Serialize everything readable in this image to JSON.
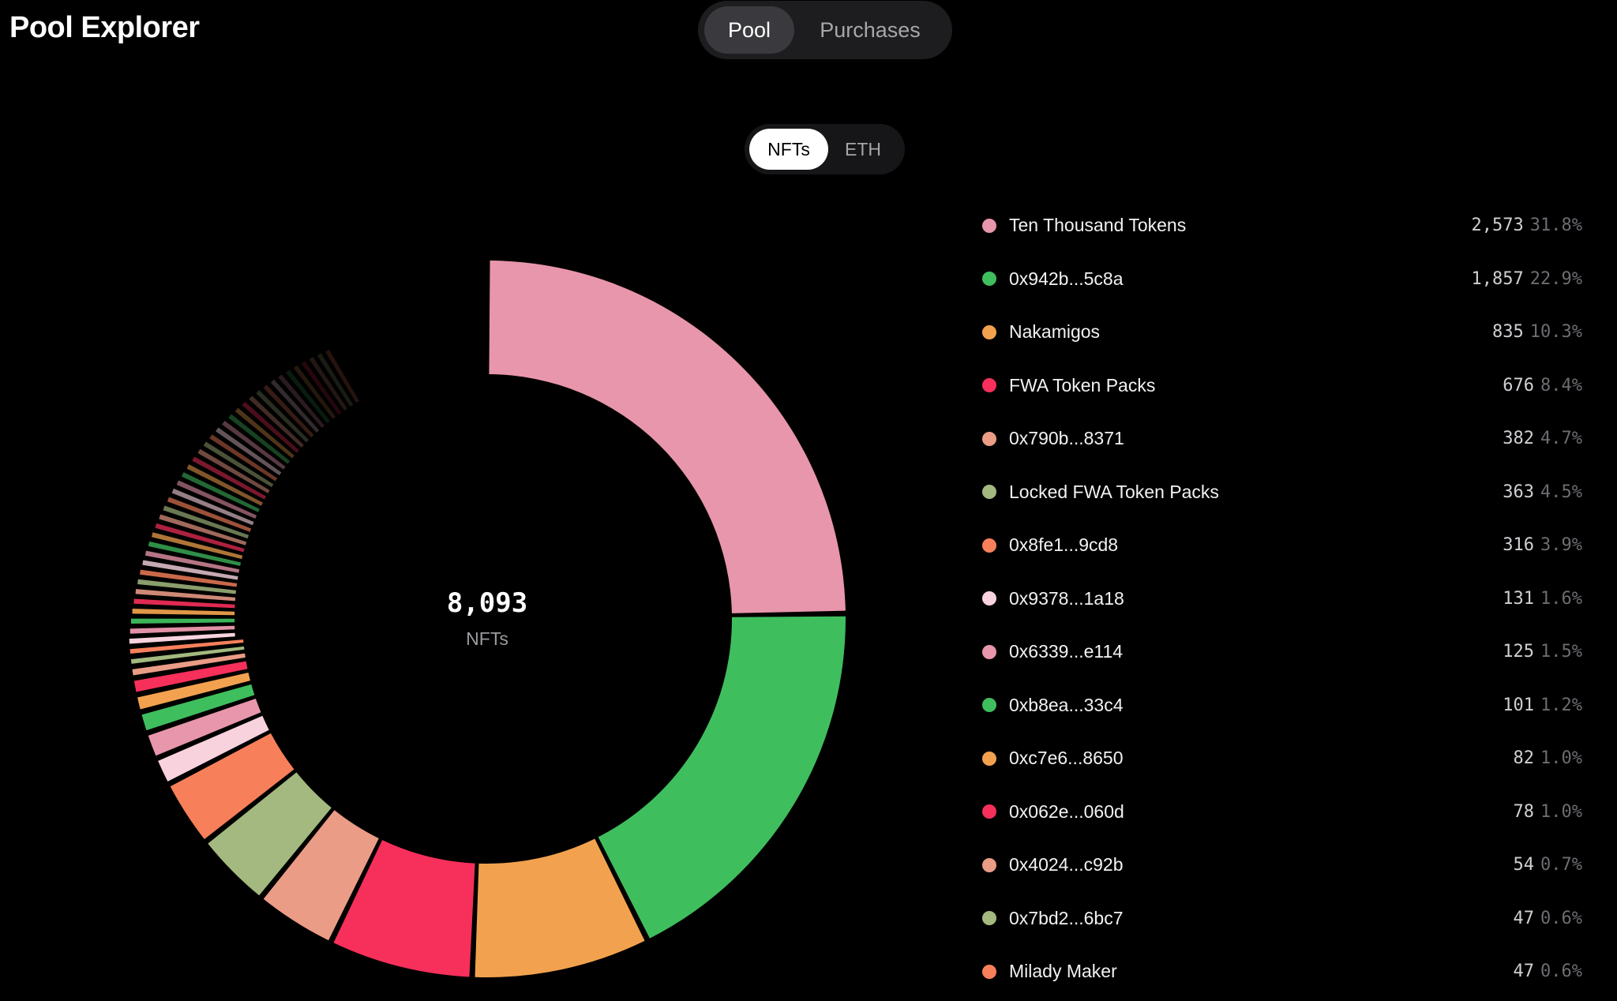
{
  "header": {
    "title": "Pool Explorer"
  },
  "tabs": [
    {
      "label": "Pool",
      "active": true
    },
    {
      "label": "Purchases",
      "active": false
    }
  ],
  "unit_toggle": {
    "options": [
      {
        "label": "NFTs",
        "selected": true
      },
      {
        "label": "ETH",
        "selected": false
      }
    ]
  },
  "summary": {
    "total": "8,093",
    "unit": "NFTs"
  },
  "legend": [
    {
      "name": "Ten Thousand Tokens",
      "count": "2,573",
      "pct": "31.8%",
      "color": "#e896ab"
    },
    {
      "name": "0x942b...5c8a",
      "count": "1,857",
      "pct": "22.9%",
      "color": "#3fbe5e"
    },
    {
      "name": "Nakamigos",
      "count": "835",
      "pct": "10.3%",
      "color": "#f2a24e"
    },
    {
      "name": "FWA Token Packs",
      "count": "676",
      "pct": "8.4%",
      "color": "#f72f5b"
    },
    {
      "name": "0x790b...8371",
      "count": "382",
      "pct": "4.7%",
      "color": "#eb9c86"
    },
    {
      "name": "Locked FWA Token Packs",
      "count": "363",
      "pct": "4.5%",
      "color": "#a3b97f"
    },
    {
      "name": "0x8fe1...9cd8",
      "count": "316",
      "pct": "3.9%",
      "color": "#f7805a"
    },
    {
      "name": "0x9378...1a18",
      "count": "131",
      "pct": "1.6%",
      "color": "#f8d3de"
    },
    {
      "name": "0x6339...e114",
      "count": "125",
      "pct": "1.5%",
      "color": "#e896ab"
    },
    {
      "name": "0xb8ea...33c4",
      "count": "101",
      "pct": "1.2%",
      "color": "#3fbe5e"
    },
    {
      "name": "0xc7e6...8650",
      "count": "82",
      "pct": "1.0%",
      "color": "#f2a24e"
    },
    {
      "name": "0x062e...060d",
      "count": "78",
      "pct": "1.0%",
      "color": "#f72f5b"
    },
    {
      "name": "0x4024...c92b",
      "count": "54",
      "pct": "0.7%",
      "color": "#eb9c86"
    },
    {
      "name": "0x7bd2...6bc7",
      "count": "47",
      "pct": "0.6%",
      "color": "#a3b97f"
    },
    {
      "name": "Milady Maker",
      "count": "47",
      "pct": "0.6%",
      "color": "#f7805a"
    }
  ],
  "chart_data": {
    "type": "pie",
    "categories": [
      "Ten Thousand Tokens",
      "0x942b...5c8a",
      "Nakamigos",
      "FWA Token Packs",
      "0x790b...8371",
      "Locked FWA Token Packs",
      "0x8fe1...9cd8",
      "0x9378...1a18",
      "0x6339...e114",
      "0xb8ea...33c4",
      "0xc7e6...8650",
      "0x062e...060d",
      "0x4024...c92b",
      "0x7bd2...6bc7",
      "Milady Maker"
    ],
    "values": [
      2573,
      1857,
      835,
      676,
      382,
      363,
      316,
      131,
      125,
      101,
      82,
      78,
      54,
      47,
      47
    ],
    "total": 8093,
    "tail_slice_count": 40,
    "palette": [
      "#e896ab",
      "#3fbe5e",
      "#f2a24e",
      "#f72f5b",
      "#eb9c86",
      "#a3b97f",
      "#f7805a",
      "#f8d3de"
    ]
  }
}
